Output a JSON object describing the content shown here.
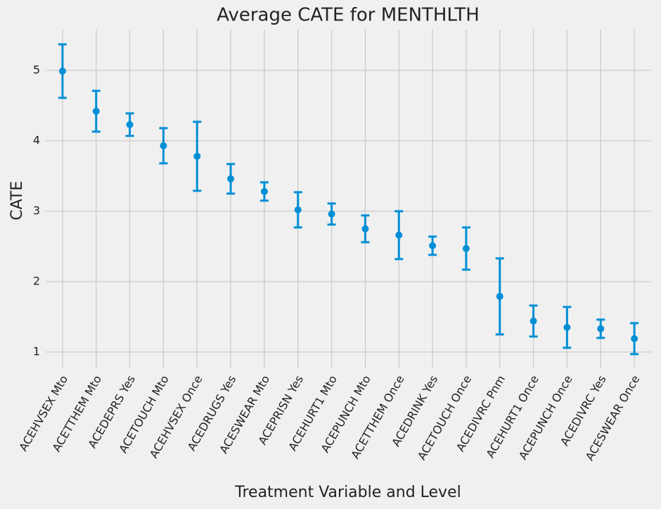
{
  "chart_data": {
    "type": "errorbar",
    "title": "Average CATE for MENTHLTH",
    "xlabel": "Treatment Variable and Level",
    "ylabel": "CATE",
    "categories": [
      "ACEHVSEX Mto",
      "ACETTHEM Mto",
      "ACEDEPRS Yes",
      "ACETOUCH Mto",
      "ACEHVSEX Once",
      "ACEDRUGS Yes",
      "ACESWEAR Mto",
      "ACEPRISN Yes",
      "ACEHURT1 Mto",
      "ACEPUNCH Mto",
      "ACETTHEM Once",
      "ACEDRINK Yes",
      "ACETOUCH Once",
      "ACEDIVRC Pnm",
      "ACEHURT1 Once",
      "ACEPUNCH Once",
      "ACEDIVRC Yes",
      "ACESWEAR Once"
    ],
    "values": [
      4.99,
      4.42,
      4.23,
      3.93,
      3.78,
      3.46,
      3.28,
      3.02,
      2.96,
      2.75,
      2.66,
      2.51,
      2.47,
      1.79,
      1.44,
      1.35,
      1.33,
      1.19
    ],
    "errors": [
      0.38,
      0.29,
      0.16,
      0.25,
      0.49,
      0.21,
      0.13,
      0.25,
      0.15,
      0.19,
      0.34,
      0.13,
      0.3,
      0.54,
      0.22,
      0.29,
      0.13,
      0.22
    ],
    "color": "#008fd5",
    "ylim": [
      0.77,
      5.58
    ],
    "yticks": [
      1,
      2,
      3,
      4,
      5
    ],
    "grid": true
  }
}
